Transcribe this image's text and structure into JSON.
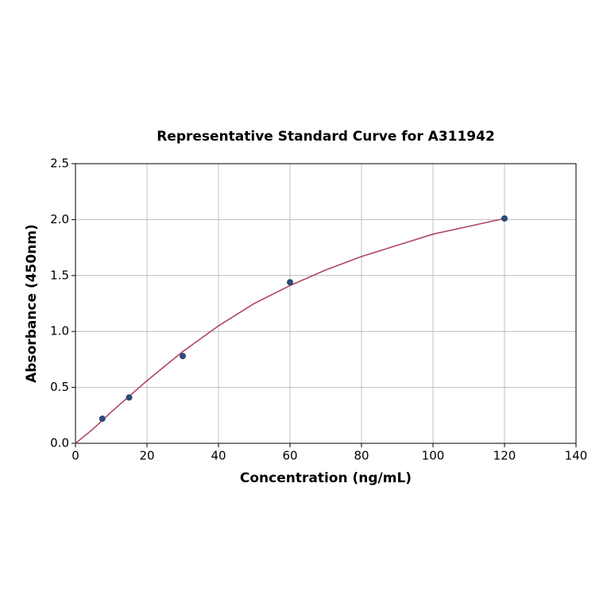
{
  "chart_data": {
    "type": "scatter",
    "title": "Representative Standard Curve for A311942",
    "x_label": "Concentration (ng/mL)",
    "y_label": "Absorbance (450nm)",
    "xlim": [
      0,
      140
    ],
    "ylim": [
      0,
      2.5
    ],
    "xticks": [
      0,
      20,
      40,
      60,
      80,
      100,
      120,
      140
    ],
    "yticks": [
      {
        "value": 0,
        "label": "0.0"
      },
      {
        "value": 0.5,
        "label": "0.5"
      },
      {
        "value": 1,
        "label": "1.0"
      },
      {
        "value": 1.5,
        "label": "1.5"
      },
      {
        "value": 2,
        "label": "2.0"
      },
      {
        "value": 2.5,
        "label": "2.5"
      }
    ],
    "grid": true,
    "series": [
      {
        "type": "scatter",
        "color": "#2d4a78",
        "x": [
          7.5,
          15,
          30,
          60,
          120
        ],
        "values": [
          0.22,
          0.41,
          0.78,
          1.44,
          2.01
        ]
      },
      {
        "type": "line",
        "color": "#b04660",
        "x": [
          0,
          5,
          10,
          20,
          30,
          40,
          50,
          60,
          70,
          80,
          90,
          100,
          110,
          120
        ],
        "values": [
          0.0,
          0.13,
          0.28,
          0.56,
          0.82,
          1.05,
          1.25,
          1.41,
          1.55,
          1.67,
          1.77,
          1.87,
          1.94,
          2.01
        ]
      }
    ]
  }
}
